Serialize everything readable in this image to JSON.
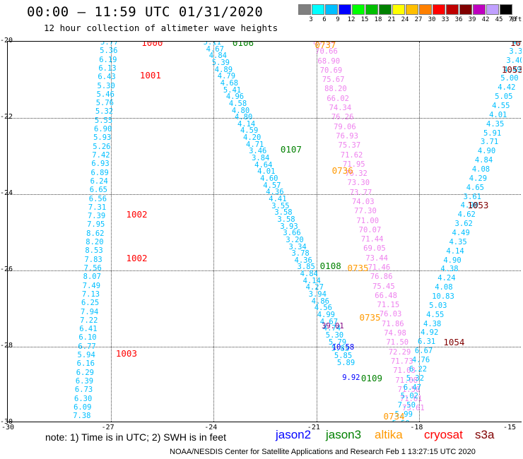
{
  "title": "00:00 – 11:59 UTC 01/31/2020",
  "subtitle": "12 hour collection of altimeter wave heights",
  "colorbar": {
    "labels": [
      "3",
      "6",
      "9",
      "12",
      "15",
      "18",
      "21",
      "24",
      "27",
      "30",
      "33",
      "36",
      "39",
      "42",
      "45",
      "70"
    ],
    "unit": "(ft)",
    "colors": [
      "#7f7f7f",
      "#00ffff",
      "#00bfff",
      "#0000ff",
      "#00ff00",
      "#00bf00",
      "#008000",
      "#ffff00",
      "#ffbf00",
      "#ff8000",
      "#ff0000",
      "#bf0000",
      "#800000",
      "#bf00bf",
      "#c0a0ff",
      "#000000"
    ]
  },
  "axes": {
    "y_labels": [
      "-20",
      "-22",
      "-24",
      "-26",
      "-28",
      "-30"
    ],
    "x_labels": [
      "-30",
      "-27",
      "-24",
      "-21",
      "-18",
      "-15"
    ]
  },
  "tracks": [
    {
      "x_start": -27.3,
      "lat_start": -20.0,
      "lat_end": -29.8,
      "color": "#00bfff",
      "values": [
        "5.77",
        "5.36",
        "6.19",
        "6.13",
        "6.43",
        "5.30",
        "5.46",
        "5.76",
        "5.32",
        "5.55",
        "6.90",
        "5.93",
        "5.26",
        "7.42",
        "6.93",
        "6.89",
        "6.24",
        "6.65",
        "6.56",
        "7.31",
        "7.39",
        "7.95",
        "8.62",
        "8.20",
        "8.53",
        "7.83",
        "7.56",
        "8.07",
        "7.49",
        "7.13",
        "6.25",
        "7.94",
        "7.22",
        "6.41",
        "6.10",
        "6.77",
        "5.94",
        "6.16",
        "6.29",
        "6.39",
        "6.73",
        "6.30",
        "6.09",
        "7.38"
      ]
    },
    {
      "x_start": -24.3,
      "lat_start": -20.0,
      "lat_end": -28.4,
      "color": "#00bfff",
      "values": [
        "5.11",
        "4.67",
        "4.84",
        "5.39",
        "4.89",
        "4.79",
        "4.68",
        "5.41",
        "4.96",
        "4.58",
        "4.80",
        "4.80",
        "4.14",
        "4.59",
        "4.20",
        "4.71",
        "3.46",
        "3.84",
        "4.64",
        "4.01",
        "4.60",
        "4.57",
        "4.36",
        "4.41",
        "3.55",
        "3.58",
        "3.58",
        "3.93",
        "3.66",
        "3.20",
        "3.34",
        "3.78",
        "4.36",
        "3.85",
        "4.84",
        "4.14",
        "4.27",
        "3.94",
        "4.86",
        "4.56",
        "4.99",
        "4.67",
        "4.74",
        "5.30",
        "5.79",
        "5.83",
        "5.85",
        "5.89"
      ]
    },
    {
      "x_start": -21.1,
      "lat_start": -20.0,
      "lat_end": -29.6,
      "color": "#ee82ee",
      "values": [
        "80.34",
        "70.66",
        "68.90",
        "70.69",
        "75.67",
        "88.20",
        "66.02",
        "74.34",
        "76.26",
        "79.06",
        "76.93",
        "75.37",
        "71.62",
        "71.95",
        "76.32",
        "73.30",
        "73.77",
        "74.03",
        "77.30",
        "71.00",
        "70.07",
        "71.44",
        "69.05",
        "73.44",
        "71.46",
        "76.86",
        "75.45",
        "66.48",
        "71.15",
        "76.03",
        "71.86",
        "74.98",
        "71.50",
        "72.29",
        "71.73",
        "71.03",
        "71.08",
        "71.50",
        "71.61",
        "73.61"
      ]
    },
    {
      "x_start": -15.3,
      "lat_start": -20.0,
      "lat_end": -30.0,
      "color": "#00bfff",
      "values": [
        "4.82",
        "3.35",
        "3.40",
        "4.49",
        "5.00",
        "4.42",
        "5.05",
        "4.55",
        "4.01",
        "4.35",
        "5.91",
        "3.71",
        "4.90",
        "4.84",
        "4.08",
        "4.29",
        "4.65",
        "3.61",
        "4.90",
        "4.62",
        "3.62",
        "4.49",
        "4.35",
        "4.14",
        "4.90",
        "4.38",
        "4.24",
        "4.08",
        "10.83",
        "5.03",
        "4.55",
        "4.38",
        "4.92",
        "6.31",
        "6.67",
        "4.76",
        "6.22",
        "5.32",
        "6.47",
        "5.02",
        "7.50",
        "5.99",
        "5.59"
      ]
    }
  ],
  "special_points": [
    {
      "text": "39.01",
      "color": "#800080",
      "lon": -20.85,
      "lat": -27.45
    },
    {
      "text": "10.58",
      "color": "#0000ff",
      "lon": -20.55,
      "lat": -28.0
    },
    {
      "text": "9.92",
      "color": "#0000ff",
      "lon": -20.25,
      "lat": -28.8
    }
  ],
  "time_labels": [
    {
      "text": "1000",
      "color": "#ff0000",
      "lon": -26.1,
      "lat": -20.0
    },
    {
      "text": "1001",
      "color": "#ff0000",
      "lon": -26.15,
      "lat": -20.85
    },
    {
      "text": "1002",
      "color": "#ff0000",
      "lon": -26.55,
      "lat": -24.5
    },
    {
      "text": "1002",
      "color": "#ff0000",
      "lon": -26.55,
      "lat": -25.65
    },
    {
      "text": "1003",
      "color": "#ff0000",
      "lon": -26.85,
      "lat": -28.15
    },
    {
      "text": "0106",
      "color": "#008000",
      "lon": -23.45,
      "lat": -20.0
    },
    {
      "text": "0107",
      "color": "#008000",
      "lon": -22.05,
      "lat": -22.8
    },
    {
      "text": "0108",
      "color": "#008000",
      "lon": -20.9,
      "lat": -25.85
    },
    {
      "text": "0109",
      "color": "#008000",
      "lon": -19.7,
      "lat": -28.8
    },
    {
      "text": "0737",
      "color": "#ff9900",
      "lon": -21.05,
      "lat": -20.05
    },
    {
      "text": "0736",
      "color": "#ff9900",
      "lon": -20.55,
      "lat": -23.35
    },
    {
      "text": "0735",
      "color": "#ff9900",
      "lon": -20.1,
      "lat": -25.9
    },
    {
      "text": "0735",
      "color": "#ff9900",
      "lon": -19.75,
      "lat": -27.2
    },
    {
      "text": "0734",
      "color": "#ff9900",
      "lon": -19.05,
      "lat": -29.8
    },
    {
      "text": "105",
      "color": "#800000",
      "lon": -15.35,
      "lat": -20.0
    },
    {
      "text": "1053",
      "color": "#800000",
      "lon": -15.6,
      "lat": -20.7
    },
    {
      "text": "1053",
      "color": "#800000",
      "lon": -16.6,
      "lat": -24.25
    },
    {
      "text": "1054",
      "color": "#800000",
      "lon": -17.3,
      "lat": -27.85
    }
  ],
  "note": "note: 1) Time is in UTC; 2) SWH is in feet",
  "legend": [
    {
      "label": "jason2",
      "color": "#0000ff"
    },
    {
      "label": "jason3",
      "color": "#008000"
    },
    {
      "label": "altika",
      "color": "#ff9900"
    },
    {
      "label": "cryosat",
      "color": "#ff0000"
    },
    {
      "label": "s3a",
      "color": "#800000"
    }
  ],
  "credit": "NOAA/NESDIS Center for Satellite Applications and Research    Feb  1 13:27:15 UTC 2020"
}
